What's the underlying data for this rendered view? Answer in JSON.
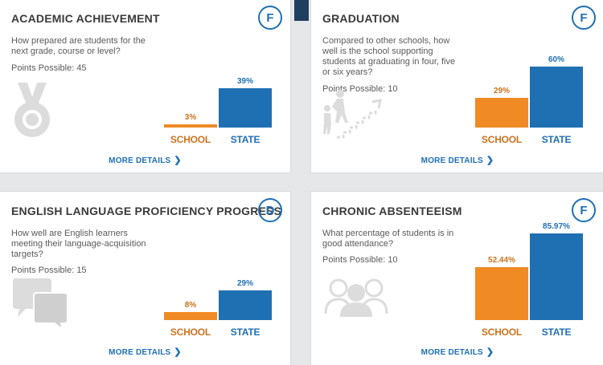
{
  "colors": {
    "school": "#f08a24",
    "state": "#1f6fb3",
    "title": "#3a3a3a",
    "grade": "#1f6fb3"
  },
  "cards": [
    {
      "title": "ACADEMIC ACHIEVEMENT",
      "grade": "F",
      "question": "How prepared are students for the next grade, course or level?",
      "points": "Points Possible: 45",
      "icon": "medal-icon",
      "school_label": "SCHOOL",
      "state_label": "STATE",
      "school_value": "3%",
      "state_value": "39%",
      "more": "MORE DETAILS",
      "chart_data": {
        "type": "bar",
        "categories": [
          "SCHOOL",
          "STATE"
        ],
        "values": [
          3,
          39
        ],
        "unit": "%"
      }
    },
    {
      "title": "GRADUATION",
      "grade": "F",
      "question": "Compared to other schools, how well is the school supporting students at graduating in four, five or six years?",
      "points": "Points Possible: 10",
      "icon": "graduation-stairs-icon",
      "school_label": "SCHOOL",
      "state_label": "STATE",
      "school_value": "29%",
      "state_value": "60%",
      "more": "MORE DETAILS",
      "chart_data": {
        "type": "bar",
        "categories": [
          "SCHOOL",
          "STATE"
        ],
        "values": [
          29,
          60
        ],
        "unit": "%"
      }
    },
    {
      "title": "ENGLISH LANGUAGE PROFICIENCY PROGRESS",
      "grade": "D",
      "question": "How well are English learners meeting their language-acquisition targets?",
      "points": "Points Possible: 15",
      "icon": "speech-bubbles-icon",
      "school_label": "SCHOOL",
      "state_label": "STATE",
      "school_value": "8%",
      "state_value": "29%",
      "more": "MORE DETAILS",
      "chart_data": {
        "type": "bar",
        "categories": [
          "SCHOOL",
          "STATE"
        ],
        "values": [
          8,
          29
        ],
        "unit": "%"
      }
    },
    {
      "title": "CHRONIC ABSENTEEISM",
      "grade": "F",
      "question": "What percentage of students is in good attendance?",
      "points": "Points Possible: 10",
      "icon": "people-group-icon",
      "school_label": "SCHOOL",
      "state_label": "STATE",
      "school_value": "52.44%",
      "state_value": "85.97%",
      "more": "MORE DETAILS",
      "chart_data": {
        "type": "bar",
        "categories": [
          "SCHOOL",
          "STATE"
        ],
        "values": [
          52.44,
          85.97
        ],
        "unit": "%"
      }
    }
  ]
}
